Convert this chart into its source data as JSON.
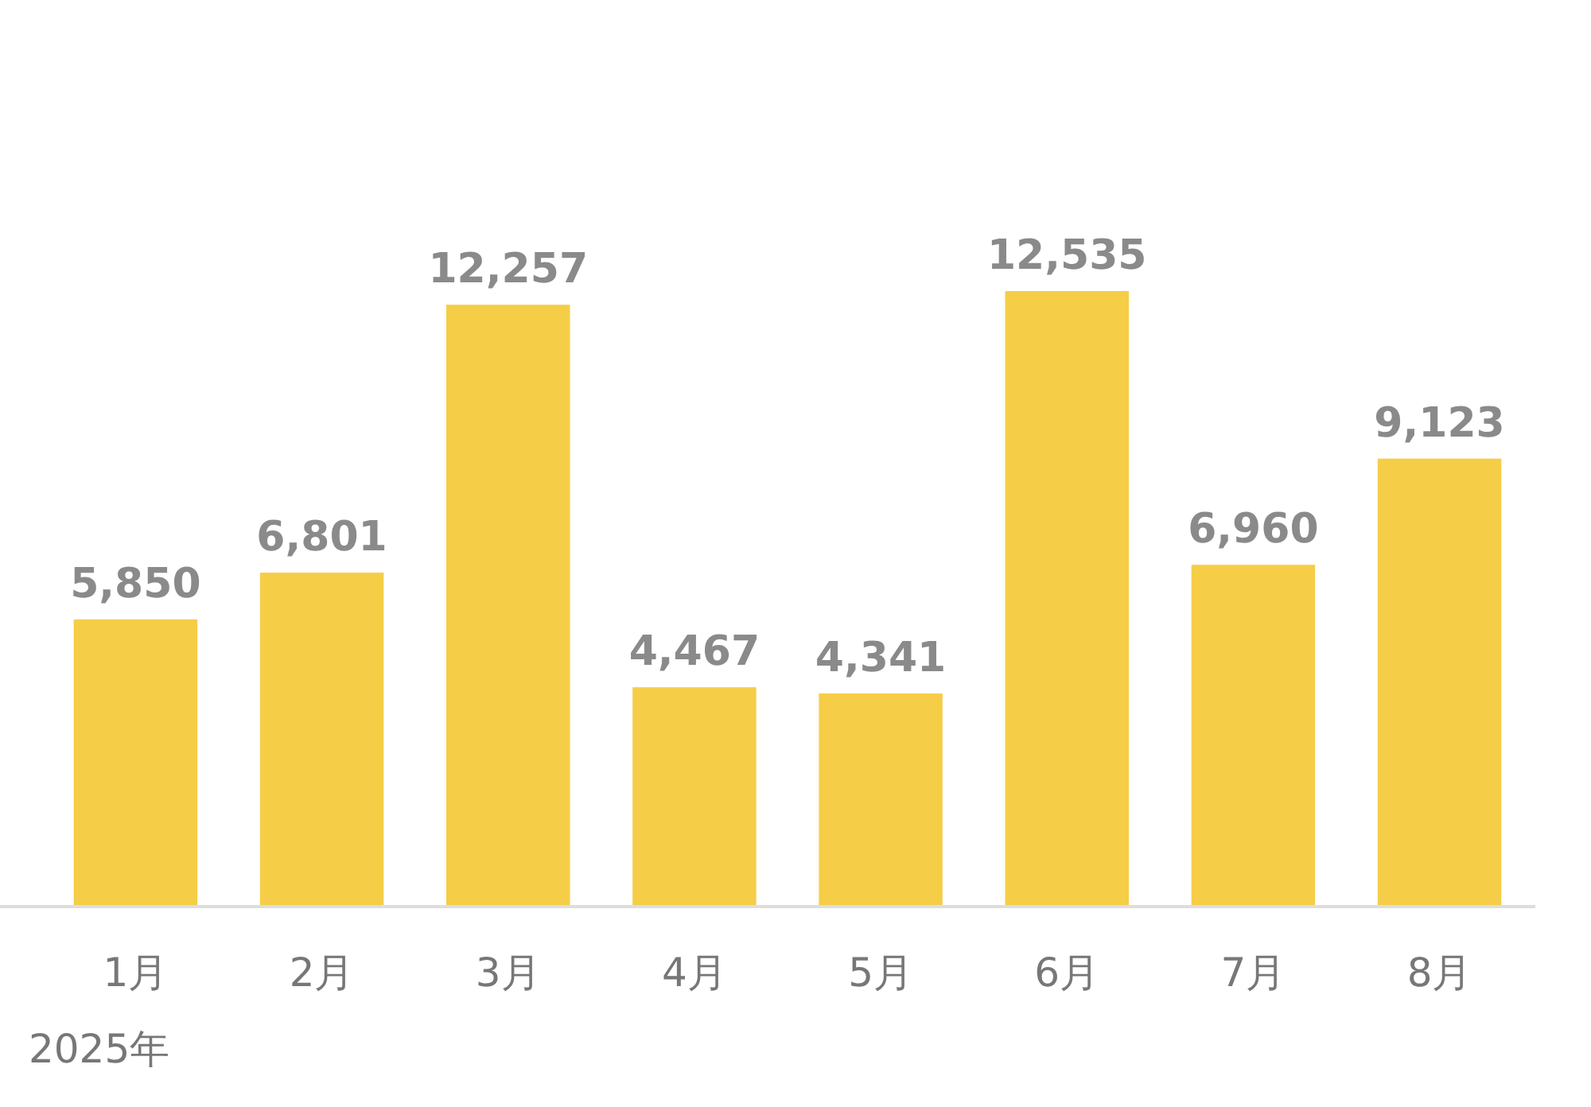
{
  "chart_data": {
    "type": "bar",
    "categories": [
      "1月",
      "2月",
      "3月",
      "4月",
      "5月",
      "6月",
      "7月",
      "8月"
    ],
    "values": [
      5850,
      6801,
      12257,
      4467,
      4341,
      12535,
      6960,
      9123
    ],
    "value_labels": [
      "5,850",
      "6,801",
      "12,257",
      "4,467",
      "4,341",
      "12,535",
      "6,960",
      "9,123"
    ],
    "color": "#f6cd47",
    "tick_labels": "x",
    "annotations": [
      "2025年"
    ]
  }
}
